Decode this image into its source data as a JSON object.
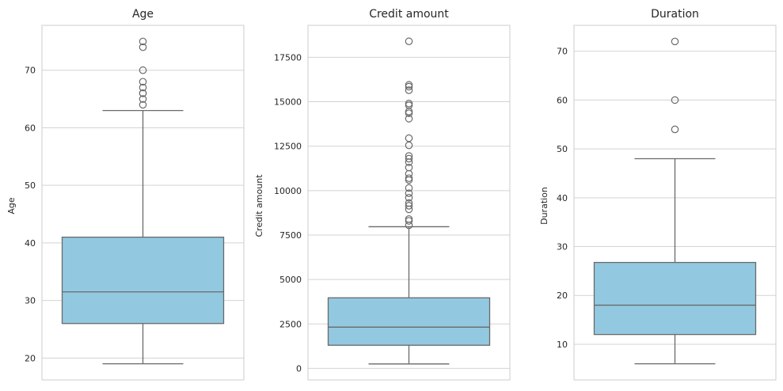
{
  "colors": {
    "box_fill": "#92c9e0",
    "line": "#6a6a6a",
    "grid": "#d3d3d3",
    "frame": "#cccccc",
    "text": "#262626"
  },
  "chart_data": [
    {
      "type": "box",
      "title": "Age",
      "xlabel": "",
      "ylabel": "Age",
      "ylim": [
        16.2,
        77.8
      ],
      "yticks": [
        20,
        30,
        40,
        50,
        60,
        70
      ],
      "ytick_labels": [
        "20",
        "30",
        "40",
        "50",
        "60",
        "70"
      ],
      "grid": true,
      "stats": {
        "whisker_low": 19,
        "q1": 26,
        "median": 31.5,
        "q3": 41,
        "whisker_high": 63
      },
      "outliers": [
        64,
        65,
        66,
        66,
        67,
        68,
        70,
        74,
        75
      ]
    },
    {
      "type": "box",
      "title": "Credit amount",
      "xlabel": "",
      "ylabel": "Credit amount",
      "ylim": [
        -650,
        19300
      ],
      "yticks": [
        0,
        2500,
        5000,
        7500,
        10000,
        12500,
        15000,
        17500
      ],
      "ytick_labels": [
        "0",
        "2500",
        "5000",
        "7500",
        "10000",
        "12500",
        "15000",
        "17500"
      ],
      "grid": true,
      "stats": {
        "whisker_low": 250,
        "q1": 1300,
        "median": 2320,
        "q3": 3970,
        "whisker_high": 7970
      },
      "outliers": [
        8050,
        8300,
        8400,
        8950,
        9150,
        9300,
        9600,
        9850,
        10150,
        10600,
        10700,
        10950,
        11300,
        11600,
        11800,
        11950,
        12550,
        12950,
        14050,
        14350,
        14450,
        14800,
        14900,
        15650,
        15850,
        15950,
        18400
      ]
    },
    {
      "type": "box",
      "title": "Duration",
      "xlabel": "",
      "ylabel": "Duration",
      "ylim": [
        2.7,
        75.3
      ],
      "yticks": [
        10,
        20,
        30,
        40,
        50,
        60,
        70
      ],
      "ytick_labels": [
        "10",
        "20",
        "30",
        "40",
        "50",
        "60",
        "70"
      ],
      "grid": true,
      "stats": {
        "whisker_low": 6,
        "q1": 12,
        "median": 18,
        "q3": 26.75,
        "whisker_high": 48
      },
      "outliers": [
        54,
        60,
        72
      ]
    }
  ]
}
